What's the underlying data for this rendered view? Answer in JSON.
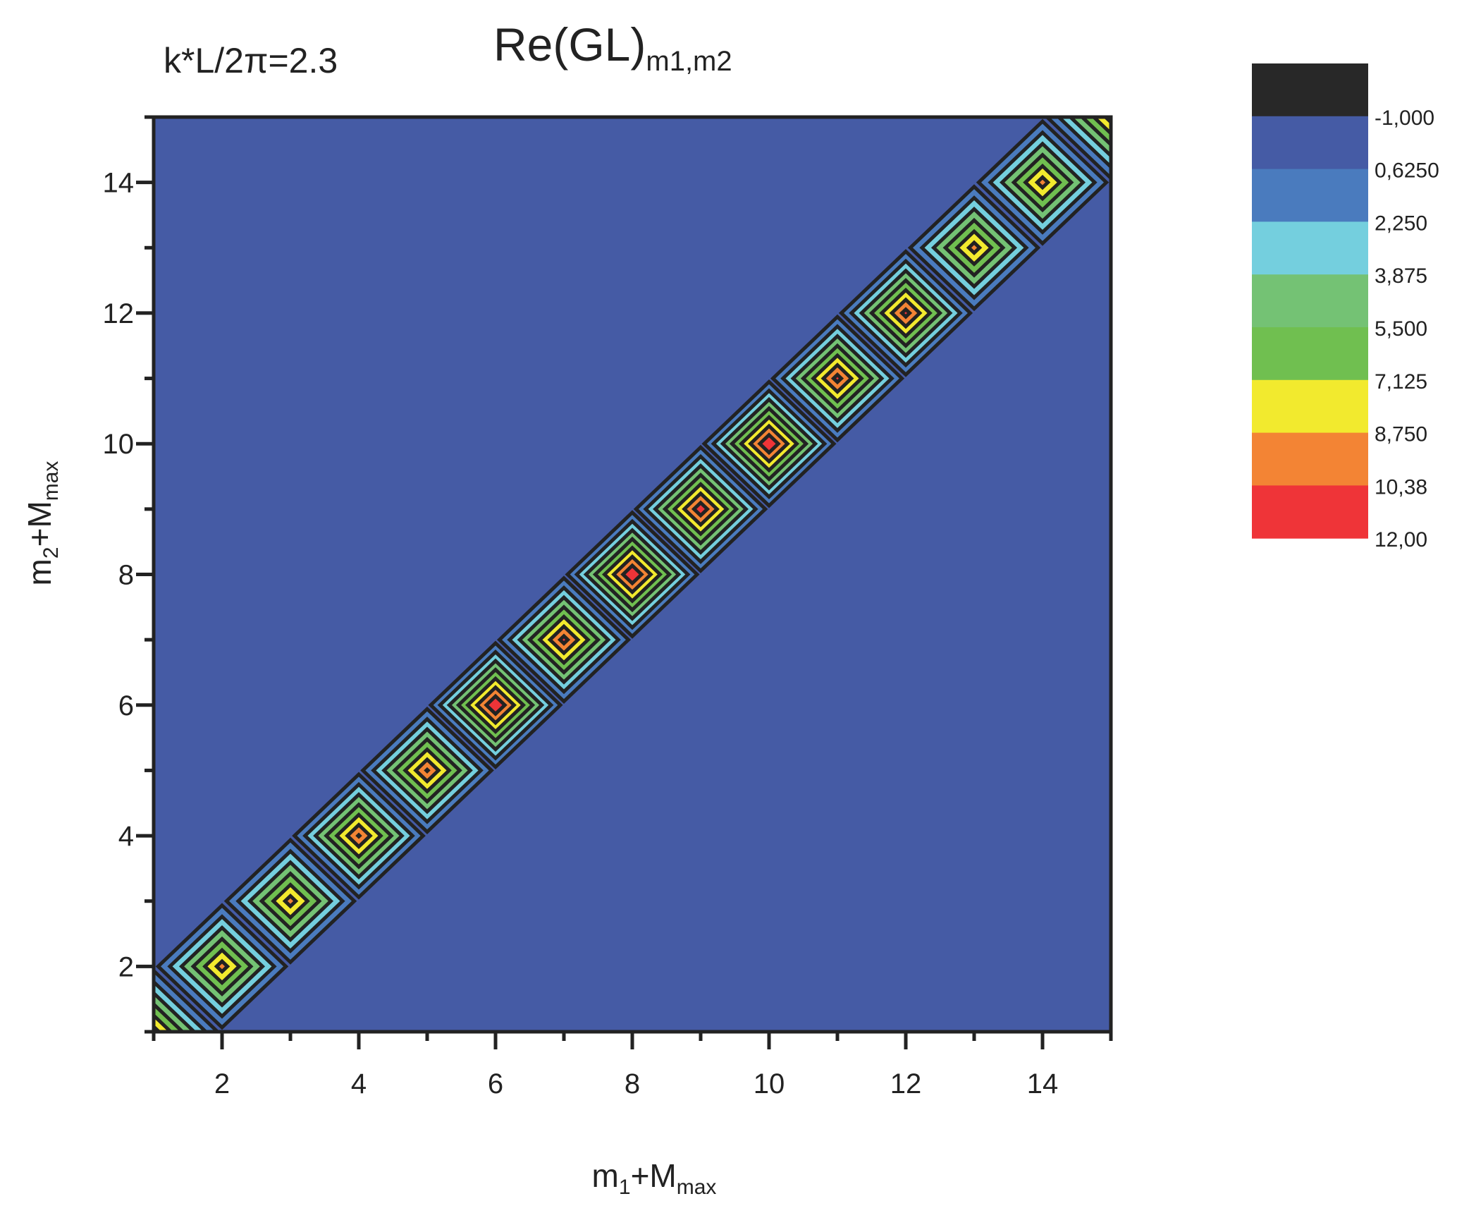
{
  "chart_data": {
    "type": "heatmap",
    "subtype": "filled-contour",
    "title": "Re(GL)",
    "title_subscript": "m1,m2",
    "annotation": "k*L/2π=2.3",
    "xlabel": {
      "main": "m",
      "sub1": "1",
      "mid": "+M",
      "sub2": "max"
    },
    "ylabel": {
      "main": "m",
      "sub1": "2",
      "mid": "+M",
      "sub2": "max"
    },
    "xlim": [
      1,
      15
    ],
    "ylim": [
      1,
      15
    ],
    "xticks": [
      2,
      4,
      6,
      8,
      10,
      12,
      14
    ],
    "yticks": [
      2,
      4,
      6,
      8,
      10,
      12,
      14
    ],
    "background_value": -1,
    "diagonal_peaks": [
      {
        "m": 1,
        "value": 9.5
      },
      {
        "m": 2,
        "value": 9.5
      },
      {
        "m": 3,
        "value": 9.5
      },
      {
        "m": 4,
        "value": 10.5
      },
      {
        "m": 5,
        "value": 10.5
      },
      {
        "m": 6,
        "value": 12
      },
      {
        "m": 7,
        "value": 11
      },
      {
        "m": 8,
        "value": 12
      },
      {
        "m": 9,
        "value": 11.5
      },
      {
        "m": 10,
        "value": 12
      },
      {
        "m": 11,
        "value": 11
      },
      {
        "m": 12,
        "value": 11
      },
      {
        "m": 13,
        "value": 9.5
      },
      {
        "m": 14,
        "value": 9.5
      },
      {
        "m": 15,
        "value": 9.5
      }
    ],
    "colorbar": {
      "levels": [
        -1.0,
        0.625,
        2.25,
        3.875,
        5.5,
        7.125,
        8.75,
        10.375,
        12.0
      ],
      "labels": [
        "-1,000",
        "0,6250",
        "2,250",
        "3,875",
        "5,500",
        "7,125",
        "8,750",
        "10,38",
        "12,00"
      ],
      "colors": [
        "#282828",
        "#455BA5",
        "#4A7BBE",
        "#74CFDE",
        "#74C274",
        "#70BF50",
        "#F2EA2E",
        "#F38434",
        "#EF3438"
      ],
      "placement": "right"
    },
    "contour_line_color": "#222222"
  }
}
